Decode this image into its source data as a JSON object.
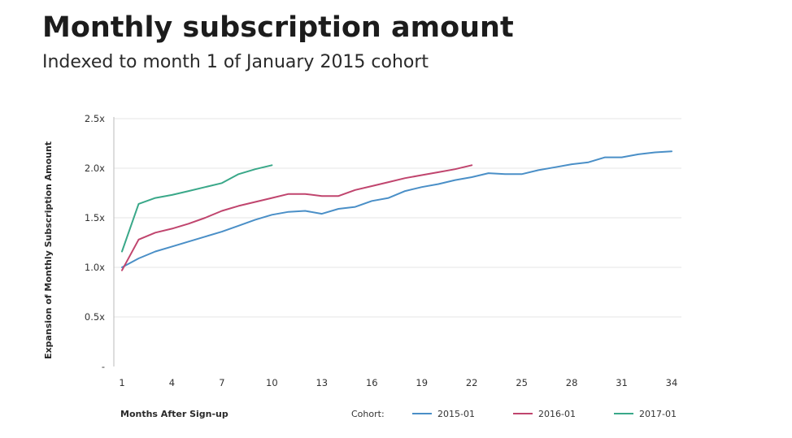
{
  "header": {
    "title": "Monthly subscription amount",
    "subtitle": "Indexed to month 1 of January 2015 cohort"
  },
  "colors": {
    "2015-01": "#4a8fc7",
    "2016-01": "#c0456e",
    "2017-01": "#3aa889",
    "grid": "#e6e6e6",
    "axis": "#bbbbbb"
  },
  "chart_data": {
    "type": "line",
    "title": "Monthly subscription amount",
    "subtitle": "Indexed to month 1 of January 2015 cohort",
    "xlabel": "Months After Sign-up",
    "ylabel": "Expansion of Monthly Subscription Amount",
    "xlim": [
      1,
      34
    ],
    "ylim": [
      0,
      2.5
    ],
    "x_ticks": [
      1,
      4,
      7,
      10,
      13,
      16,
      19,
      22,
      25,
      28,
      31,
      34
    ],
    "y_ticks": [
      {
        "value": 0,
        "label": "-"
      },
      {
        "value": 0.5,
        "label": "0.5x"
      },
      {
        "value": 1.0,
        "label": "1.0x"
      },
      {
        "value": 1.5,
        "label": "1.5x"
      },
      {
        "value": 2.0,
        "label": "2.0x"
      },
      {
        "value": 2.5,
        "label": "2.5x"
      }
    ],
    "grid": true,
    "legend": {
      "title": "Cohort:",
      "placement": "bottom-right"
    },
    "series": [
      {
        "name": "2015-01",
        "x": [
          1,
          2,
          3,
          4,
          5,
          6,
          7,
          8,
          9,
          10,
          11,
          12,
          13,
          14,
          15,
          16,
          17,
          18,
          19,
          20,
          21,
          22,
          23,
          24,
          25,
          26,
          27,
          28,
          29,
          30,
          31,
          32,
          33,
          34
        ],
        "values": [
          1.0,
          1.09,
          1.16,
          1.21,
          1.26,
          1.31,
          1.36,
          1.42,
          1.48,
          1.53,
          1.56,
          1.57,
          1.54,
          1.59,
          1.61,
          1.67,
          1.7,
          1.77,
          1.81,
          1.84,
          1.88,
          1.91,
          1.95,
          1.94,
          1.94,
          1.98,
          2.01,
          2.04,
          2.06,
          2.11,
          2.11,
          2.14,
          2.16,
          2.17
        ]
      },
      {
        "name": "2016-01",
        "x": [
          1,
          2,
          3,
          4,
          5,
          6,
          7,
          8,
          9,
          10,
          11,
          12,
          13,
          14,
          15,
          16,
          17,
          18,
          19,
          20,
          21,
          22
        ],
        "values": [
          0.97,
          1.28,
          1.35,
          1.39,
          1.44,
          1.5,
          1.57,
          1.62,
          1.66,
          1.7,
          1.74,
          1.74,
          1.72,
          1.72,
          1.78,
          1.82,
          1.86,
          1.9,
          1.93,
          1.96,
          1.99,
          2.03
        ]
      },
      {
        "name": "2017-01",
        "x": [
          1,
          2,
          3,
          4,
          5,
          6,
          7,
          8,
          9,
          10
        ],
        "values": [
          1.16,
          1.64,
          1.7,
          1.73,
          1.77,
          1.81,
          1.85,
          1.94,
          1.99,
          2.03
        ]
      }
    ]
  }
}
